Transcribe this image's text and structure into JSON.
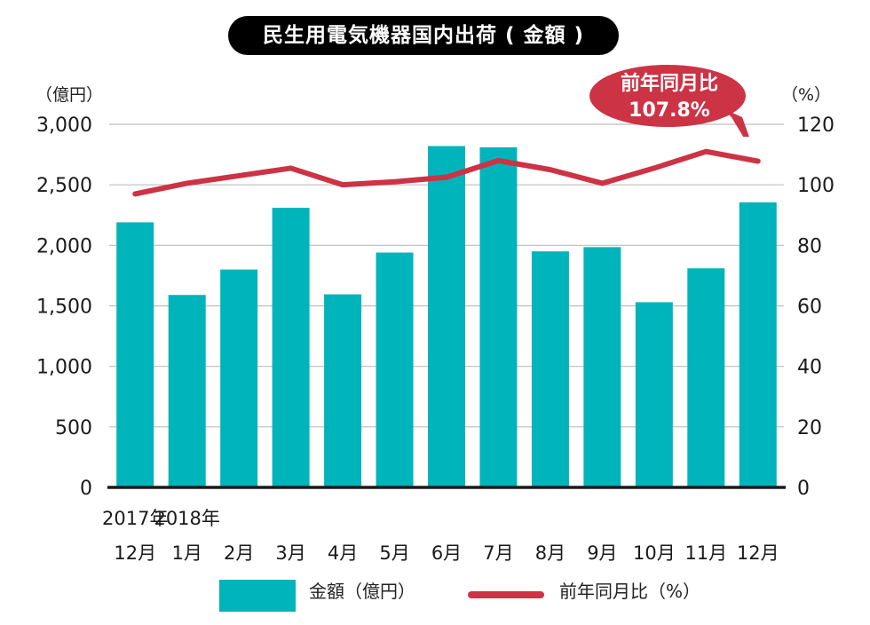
{
  "title": "民生用電気機器国内出荷 ( 金額 )",
  "left_unit": "（億円）",
  "right_unit": "（%）",
  "callout": {
    "line1": "前年同月比",
    "line2": "107.8%"
  },
  "legend": {
    "bar_label": "金額（億円）",
    "line_label": "前年同月比（%）"
  },
  "colors": {
    "bar": "#00b4bc",
    "line": "#cc3345",
    "title_bg": "#000000"
  },
  "chart_data": {
    "type": "bar",
    "title": "民生用電気機器国内出荷 ( 金額 )",
    "categories": [
      "12月",
      "1月",
      "2月",
      "3月",
      "4月",
      "5月",
      "6月",
      "7月",
      "8月",
      "9月",
      "10月",
      "11月",
      "12月"
    ],
    "year_labels": [
      {
        "index": 0,
        "label": "2017年"
      },
      {
        "index": 1,
        "label": "2018年"
      }
    ],
    "series": [
      {
        "name": "金額（億円）",
        "type": "bar",
        "axis": "left",
        "values": [
          2190,
          1590,
          1800,
          2310,
          1595,
          1940,
          2820,
          2810,
          1950,
          1985,
          1530,
          1810,
          2355
        ]
      },
      {
        "name": "前年同月比（%）",
        "type": "line",
        "axis": "right",
        "values": [
          97,
          100.5,
          103,
          105.5,
          100,
          101,
          102.5,
          108,
          105,
          100.5,
          105.5,
          111,
          107.8
        ]
      }
    ],
    "y_left": {
      "lim": [
        0,
        3000
      ],
      "ticks": [
        0,
        500,
        1000,
        1500,
        2000,
        2500,
        3000
      ],
      "tick_labels": [
        "0",
        "500",
        "1,000",
        "1,500",
        "2,000",
        "2,500",
        "3,000"
      ]
    },
    "y_right": {
      "lim": [
        0,
        120
      ],
      "ticks": [
        0,
        20,
        40,
        60,
        80,
        100,
        120
      ],
      "tick_labels": [
        "0",
        "20",
        "40",
        "60",
        "80",
        "100",
        "120"
      ]
    },
    "grid": true,
    "legend_position": "bottom"
  }
}
